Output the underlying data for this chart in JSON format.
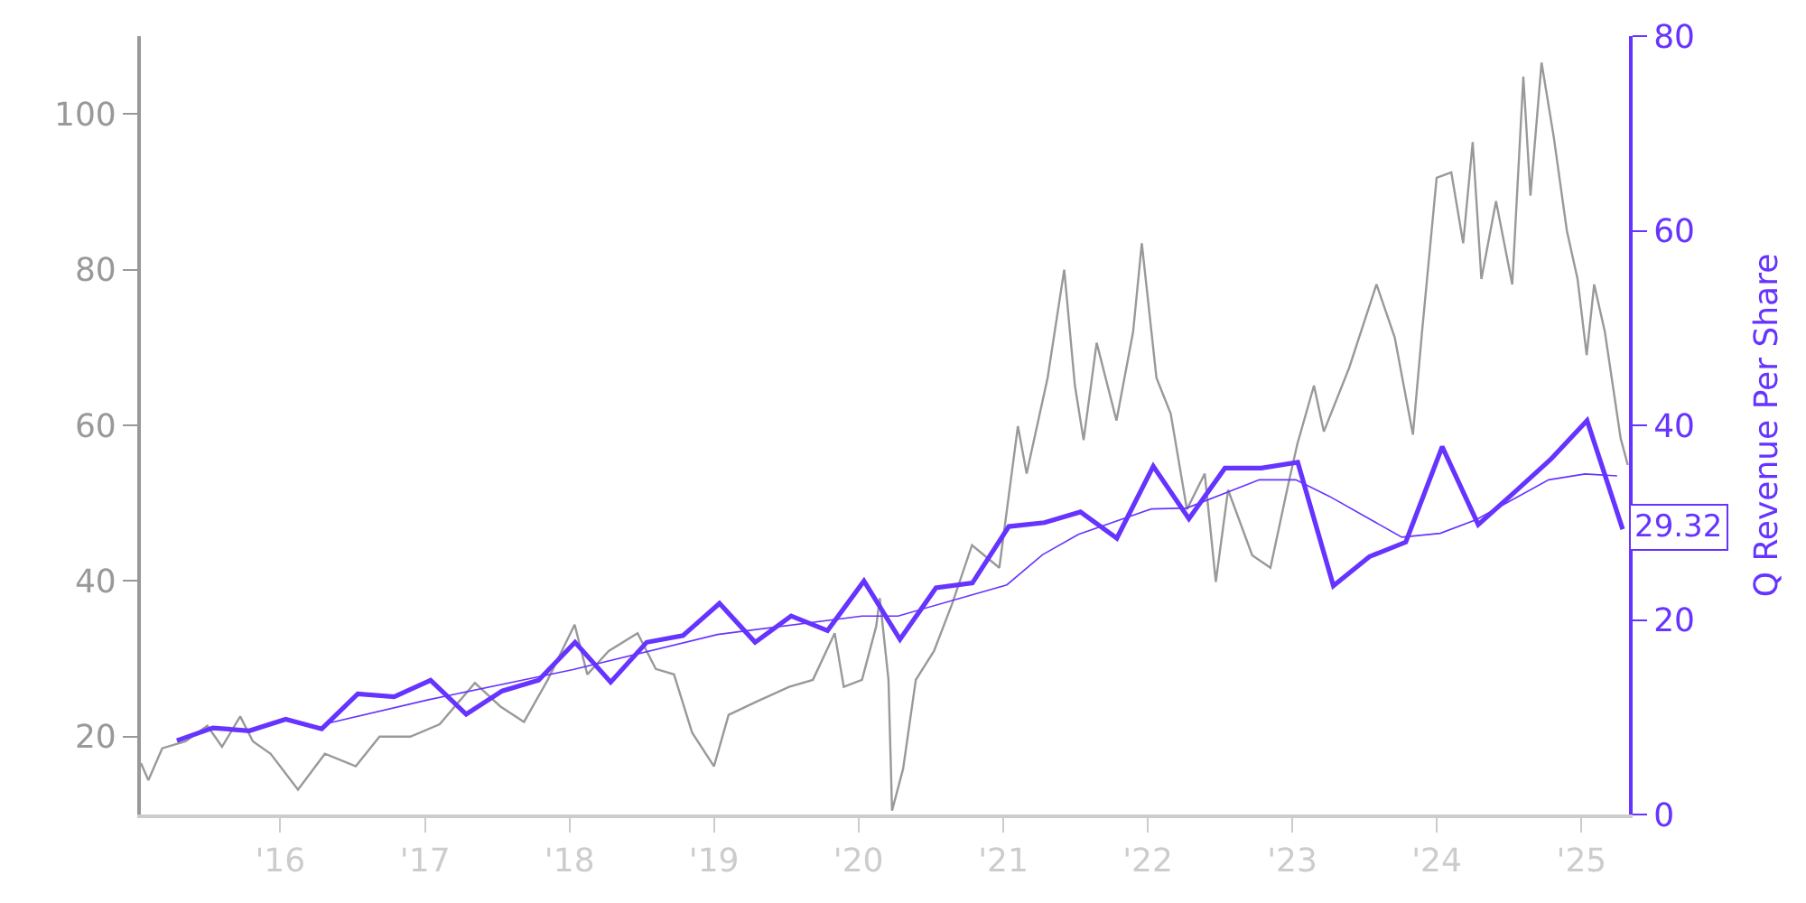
{
  "chart_data": {
    "type": "line",
    "y2label": "Q Revenue Per Share",
    "xlim": [
      "2015-01-14",
      "2025-05-01"
    ],
    "xticks": [
      {
        "value": "2016-01-01",
        "label": "'16"
      },
      {
        "value": "2017-01-01",
        "label": "'17"
      },
      {
        "value": "2018-01-01",
        "label": "'18"
      },
      {
        "value": "2019-01-01",
        "label": "'19"
      },
      {
        "value": "2020-01-01",
        "label": "'20"
      },
      {
        "value": "2021-01-01",
        "label": "'21"
      },
      {
        "value": "2022-01-01",
        "label": "'22"
      },
      {
        "value": "2023-01-01",
        "label": "'23"
      },
      {
        "value": "2024-01-01",
        "label": "'24"
      },
      {
        "value": "2025-01-01",
        "label": "'25"
      }
    ],
    "ylim": [
      10,
      110
    ],
    "yticks": [
      20,
      40,
      60,
      80,
      100
    ],
    "y2lim": [
      0,
      80
    ],
    "y2ticks": [
      0,
      20,
      40,
      60,
      80
    ],
    "marker": "none",
    "line_style": "solid",
    "series": [
      {
        "color": "#999999",
        "x": [
          "2015-01-14",
          "2015-02-02",
          "2015-03-09",
          "2015-05-07",
          "2015-07-01",
          "2015-08-07",
          "2015-09-22",
          "2015-10-24",
          "2015-12-08",
          "2016-02-15",
          "2016-04-23",
          "2016-07-10",
          "2016-09-08",
          "2016-11-25",
          "2017-02-07",
          "2017-05-07",
          "2017-07-10",
          "2017-09-08",
          "2017-11-07",
          "2018-01-14",
          "2018-02-15",
          "2018-04-10",
          "2018-06-22",
          "2018-08-07",
          "2018-09-22",
          "2018-11-07",
          "2019-01-01",
          "2019-02-07",
          "2019-04-23",
          "2019-07-10",
          "2019-09-08",
          "2019-11-02",
          "2019-11-25",
          "2020-01-10",
          "2020-02-15",
          "2020-02-24",
          "2020-03-17",
          "2020-03-26",
          "2020-04-23",
          "2020-05-25",
          "2020-07-10",
          "2020-08-25",
          "2020-10-14",
          "2020-12-22",
          "2021-02-07",
          "2021-03-01",
          "2021-04-23",
          "2021-06-04",
          "2021-07-01",
          "2021-07-23",
          "2021-08-25",
          "2021-10-14",
          "2021-11-25",
          "2021-12-17",
          "2022-01-23",
          "2022-02-28",
          "2022-04-10",
          "2022-05-25",
          "2022-06-22",
          "2022-07-23",
          "2022-09-22",
          "2022-11-07",
          "2022-12-22",
          "2023-01-14",
          "2023-02-25",
          "2023-03-22",
          "2023-05-25",
          "2023-08-02",
          "2023-09-17",
          "2023-11-02",
          "2023-11-25",
          "2024-01-01",
          "2024-02-07",
          "2024-03-08",
          "2024-04-01",
          "2024-04-23",
          "2024-05-30",
          "2024-07-10",
          "2024-08-07",
          "2024-08-25",
          "2024-09-22",
          "2024-10-23",
          "2024-11-25",
          "2024-12-22",
          "2025-01-14",
          "2025-02-02",
          "2025-03-01",
          "2025-04-10",
          "2025-04-28"
        ],
        "values": [
          16.6,
          14.4,
          18.5,
          19.4,
          21.4,
          18.7,
          22.6,
          19.4,
          17.8,
          13.2,
          17.8,
          16.2,
          20.0,
          20.0,
          21.6,
          26.9,
          23.9,
          21.9,
          27.3,
          34.4,
          28.0,
          31.0,
          33.3,
          28.7,
          28.0,
          20.5,
          16.2,
          22.8,
          24.6,
          26.4,
          27.3,
          33.3,
          26.4,
          27.3,
          34.2,
          37.8,
          27.3,
          10.5,
          15.9,
          27.3,
          31.0,
          37.1,
          44.6,
          41.7,
          59.9,
          53.8,
          66.1,
          80.0,
          65.1,
          58.1,
          70.6,
          60.6,
          72.0,
          83.4,
          66.1,
          61.5,
          49.2,
          53.8,
          39.9,
          51.7,
          43.3,
          41.7,
          52.4,
          57.6,
          65.1,
          59.2,
          67.4,
          78.1,
          71.3,
          58.8,
          72.0,
          91.8,
          92.5,
          83.4,
          96.4,
          78.8,
          88.8,
          78.1,
          104.8,
          89.5,
          106.6,
          97.0,
          85.0,
          78.8,
          69.0,
          78.1,
          72.0,
          58.3,
          54.9
        ]
      },
      {
        "color": "#6633ff",
        "axis": "y2",
        "x": [
          "2015-04-15",
          "2015-07-15",
          "2015-10-15",
          "2016-01-15",
          "2016-04-15",
          "2016-07-15",
          "2016-10-15",
          "2017-01-15",
          "2017-04-15",
          "2017-07-15",
          "2017-10-15",
          "2018-01-15",
          "2018-04-15",
          "2018-07-15",
          "2018-10-15",
          "2019-01-15",
          "2019-04-15",
          "2019-07-15",
          "2019-10-15",
          "2020-01-15",
          "2020-04-15",
          "2020-07-15",
          "2020-10-15",
          "2021-01-15",
          "2021-04-15",
          "2021-07-15",
          "2021-10-15",
          "2022-01-15",
          "2022-04-15",
          "2022-07-15",
          "2022-10-15",
          "2023-01-15",
          "2023-04-15",
          "2023-07-15",
          "2023-10-15",
          "2024-01-15",
          "2024-04-15",
          "2024-07-15",
          "2024-10-15",
          "2025-01-15",
          "2025-04-15"
        ],
        "values": [
          7.6,
          8.9,
          8.6,
          9.8,
          8.8,
          12.4,
          12.1,
          13.8,
          10.3,
          12.7,
          13.8,
          17.7,
          13.6,
          17.7,
          18.4,
          21.7,
          17.7,
          20.4,
          18.9,
          24.0,
          18.0,
          23.3,
          23.8,
          29.6,
          30.0,
          31.1,
          28.4,
          35.8,
          30.4,
          35.6,
          35.6,
          36.2,
          23.5,
          26.5,
          28.0,
          37.8,
          29.8,
          33.1,
          36.5,
          40.5,
          29.32
        ]
      },
      {
        "color": "#6633ff",
        "axis": "y2",
        "x": [
          "2016-04-23",
          "2017-01-10",
          "2018-01-10",
          "2019-01-10",
          "2020-01-10",
          "2020-04-10",
          "2021-01-10",
          "2021-04-10",
          "2021-07-10",
          "2022-01-10",
          "2022-04-10",
          "2022-10-10",
          "2023-01-10",
          "2023-04-05",
          "2023-10-05",
          "2024-01-10",
          "2024-04-10",
          "2024-10-10",
          "2025-01-10",
          "2025-04-01"
        ],
        "values": [
          9.3,
          11.8,
          14.9,
          18.5,
          20.4,
          20.4,
          23.6,
          26.7,
          28.8,
          31.4,
          31.5,
          34.4,
          34.4,
          32.7,
          28.5,
          28.9,
          30.3,
          34.4,
          35.0,
          34.8
        ]
      }
    ],
    "annotations": [
      "29.32"
    ]
  }
}
